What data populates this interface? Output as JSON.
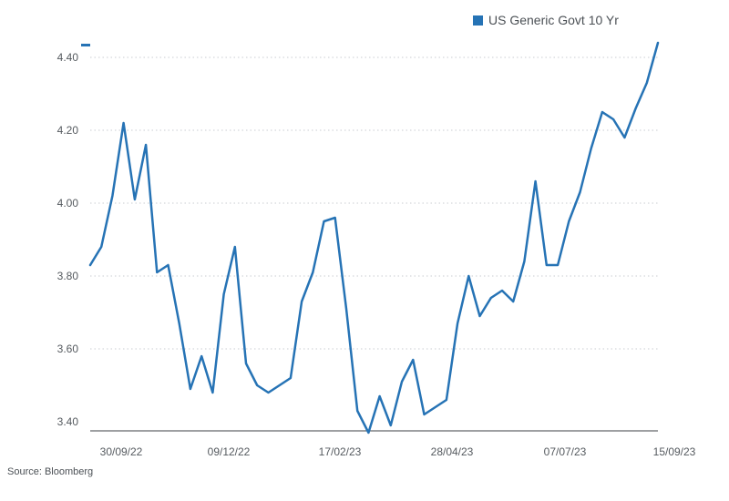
{
  "chart_data": {
    "type": "line",
    "title": "",
    "xlabel": "",
    "ylabel": "",
    "ylim": [
      3.4,
      4.44
    ],
    "yticks": [
      3.4,
      3.6,
      3.8,
      4.0,
      4.2,
      4.4
    ],
    "ytick_labels": [
      "3.40",
      "3.60",
      "3.80",
      "4.00",
      "4.20",
      "4.40"
    ],
    "xtick_labels": [
      "30/09/22",
      "09/12/22",
      "17/02/23",
      "28/04/23",
      "07/07/23",
      "15/09/23"
    ],
    "grid": "horizontal dotted",
    "legend_position": "top-right",
    "series": [
      {
        "name": "US Generic Govt 10 Yr",
        "color": "#2673b5",
        "values": [
          3.83,
          3.88,
          4.02,
          4.22,
          4.01,
          4.16,
          3.81,
          3.83,
          3.67,
          3.49,
          3.58,
          3.48,
          3.75,
          3.88,
          3.56,
          3.5,
          3.48,
          3.5,
          3.52,
          3.73,
          3.81,
          3.95,
          3.96,
          3.71,
          3.43,
          3.37,
          3.47,
          3.39,
          3.51,
          3.57,
          3.42,
          3.44,
          3.46,
          3.67,
          3.8,
          3.69,
          3.74,
          3.76,
          3.73,
          3.84,
          4.06,
          3.83,
          3.83,
          3.95,
          4.03,
          4.15,
          4.25,
          4.23,
          4.18,
          4.26,
          4.33,
          4.44
        ]
      }
    ]
  },
  "legend": {
    "label": "US Generic Govt 10 Yr",
    "color": "#2673b5"
  },
  "source": "Source: Bloomberg"
}
